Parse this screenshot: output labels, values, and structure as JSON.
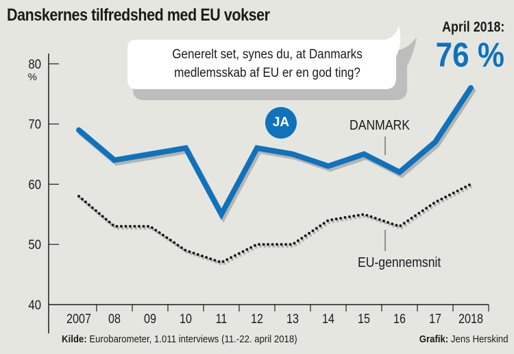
{
  "chart_data": {
    "type": "line",
    "title": "Danskernes tilfredshed med EU vokser",
    "question": "Generelt set, synes du, at Danmarks medlemsskab af EU er en god ting?",
    "answer_badge": "JA",
    "highlight": {
      "label": "April 2018:",
      "value": "76 %"
    },
    "x": [
      "2007",
      "08",
      "09",
      "10",
      "11",
      "12",
      "13",
      "14",
      "15",
      "16",
      "17",
      "2018"
    ],
    "y_ticks": [
      "40",
      "50",
      "60",
      "70",
      "80"
    ],
    "y_unit": "%",
    "ylim": [
      40,
      80
    ],
    "series": [
      {
        "name": "DANMARK",
        "color": "#0f72bd",
        "style": "solid",
        "values": [
          69,
          64,
          65,
          66,
          55,
          66,
          65,
          63,
          65,
          62,
          67,
          76
        ]
      },
      {
        "name": "EU-gennemsnit",
        "color": "#1a1a1a",
        "style": "dotted",
        "values": [
          58,
          53,
          53,
          49,
          47,
          50,
          50,
          54,
          55,
          53,
          57,
          60
        ]
      }
    ],
    "grid": false,
    "source_label": "Kilde:",
    "source_text": "Eurobarometer, 1.011 interviews (11.-22. april 2018)",
    "credit_label": "Grafik:",
    "credit_text": "Jens Herskind"
  }
}
